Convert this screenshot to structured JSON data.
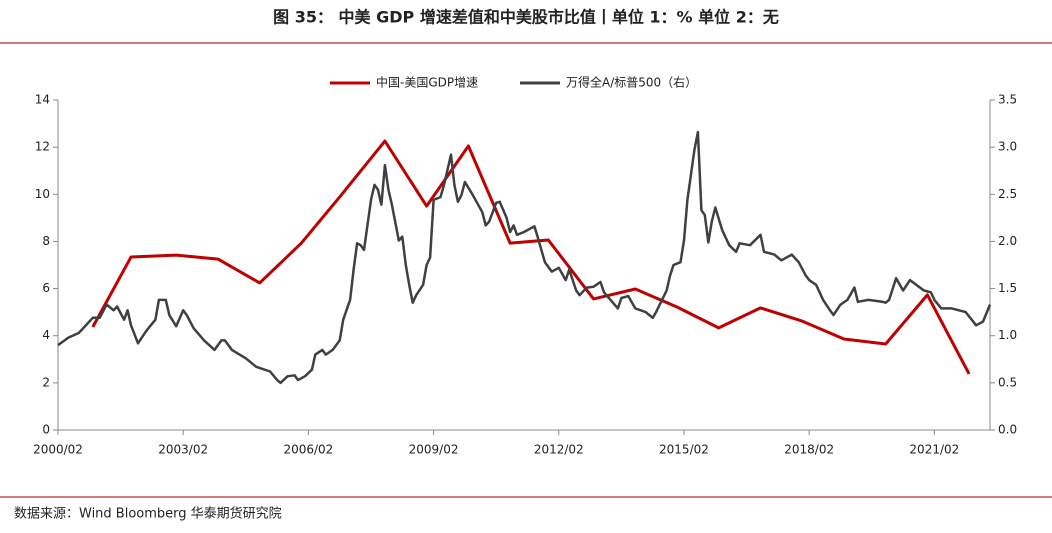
{
  "chart_data": {
    "type": "line",
    "title": "图 35： 中美 GDP 增速差值和中美股市比值丨单位 1：% 单位 2：无",
    "source": "数据来源：Wind Bloomberg  华泰期货研究院",
    "xlim": [
      "2000/02",
      "2022/06"
    ],
    "xticks": [
      "2000/02",
      "2003/02",
      "2006/02",
      "2009/02",
      "2012/02",
      "2015/02",
      "2018/02",
      "2021/02"
    ],
    "ylim": [
      0,
      14
    ],
    "yticks": [
      0,
      2,
      4,
      6,
      8,
      10,
      12,
      14
    ],
    "y2lim": [
      0,
      3.5
    ],
    "y2ticks": [
      {
        "value": 0,
        "label": "0.0"
      },
      {
        "value": 0.5,
        "label": "0.5"
      },
      {
        "value": 1,
        "label": "1.0"
      },
      {
        "value": 1.5,
        "label": "1.5"
      },
      {
        "value": 2,
        "label": "2.0"
      },
      {
        "value": 2.5,
        "label": "2.5"
      },
      {
        "value": 3,
        "label": "3.0"
      },
      {
        "value": 3.5,
        "label": "3.5"
      }
    ],
    "legend": "top",
    "series": [
      {
        "name": "中国-美国GDP增速",
        "color": "#c00000",
        "x": [
          "2000/12",
          "2001/11",
          "2002/12",
          "2003/12",
          "2004/12",
          "2005/12",
          "2006/11",
          "2007/12",
          "2008/12",
          "2009/12",
          "2010/12",
          "2011/11",
          "2012/12",
          "2013/12",
          "2014/12",
          "2015/12",
          "2016/12",
          "2017/12",
          "2018/12",
          "2019/12",
          "2020/12",
          "2021/12"
        ],
        "values": [
          4.37,
          7.34,
          7.42,
          7.25,
          6.24,
          7.93,
          9.89,
          12.26,
          9.5,
          12.05,
          7.93,
          8.06,
          5.56,
          5.98,
          5.22,
          4.33,
          5.18,
          4.62,
          3.86,
          3.65,
          5.73,
          2.38
        ]
      },
      {
        "name": "万得全A/标普500（右）",
        "color": "#404040",
        "axis": "y2",
        "x": [
          "2000/02",
          "2000/05",
          "2000/08",
          "2000/12",
          "2001/02",
          "2001/04",
          "2001/06",
          "2001/07",
          "2001/09",
          "2001/10",
          "2001/11",
          "2002/01",
          "2002/03",
          "2002/04",
          "2002/06",
          "2002/07",
          "2002/09",
          "2002/10",
          "2002/12",
          "2003/02",
          "2003/03",
          "2003/05",
          "2003/08",
          "2003/11",
          "2004/01",
          "2004/02",
          "2004/04",
          "2004/08",
          "2004/11",
          "2005/03",
          "2005/05",
          "2005/06",
          "2005/08",
          "2005/10",
          "2005/11",
          "2006/01",
          "2006/03",
          "2006/04",
          "2006/06",
          "2006/07",
          "2006/09",
          "2006/11",
          "2006/12",
          "2007/02",
          "2007/03",
          "2007/04",
          "2007/05",
          "2007/06",
          "2007/08",
          "2007/09",
          "2007/10",
          "2007/11",
          "2007/12",
          "2008/01",
          "2008/02",
          "2008/04",
          "2008/05",
          "2008/06",
          "2008/07",
          "2008/08",
          "2008/09",
          "2008/11",
          "2008/12",
          "2009/01",
          "2009/02",
          "2009/04",
          "2009/05",
          "2009/07",
          "2009/08",
          "2009/09",
          "2009/10",
          "2009/11",
          "2010/01",
          "2010/04",
          "2010/05",
          "2010/06",
          "2010/08",
          "2010/09",
          "2010/11",
          "2010/12",
          "2011/01",
          "2011/02",
          "2011/04",
          "2011/07",
          "2011/08",
          "2011/10",
          "2011/12",
          "2012/02",
          "2012/04",
          "2012/05",
          "2012/07",
          "2012/08",
          "2012/10",
          "2012/12",
          "2013/02",
          "2013/03",
          "2013/07",
          "2013/08",
          "2013/10",
          "2013/12",
          "2014/03",
          "2014/05",
          "2014/06",
          "2014/09",
          "2014/10",
          "2014/11",
          "2015/01",
          "2015/02",
          "2015/03",
          "2015/05",
          "2015/06",
          "2015/07",
          "2015/08",
          "2015/09",
          "2015/10",
          "2015/11",
          "2016/01",
          "2016/03",
          "2016/05",
          "2016/06",
          "2016/09",
          "2016/12",
          "2017/01",
          "2017/04",
          "2017/06",
          "2017/09",
          "2017/11",
          "2018/01",
          "2018/02",
          "2018/04",
          "2018/06",
          "2018/08",
          "2018/09",
          "2018/11",
          "2019/01",
          "2019/03",
          "2019/04",
          "2019/07",
          "2019/11",
          "2019/12",
          "2020/01",
          "2020/03",
          "2020/05",
          "2020/07",
          "2020/11",
          "2021/01",
          "2021/02",
          "2021/04",
          "2021/07",
          "2021/11",
          "2022/02",
          "2022/04",
          "2022/06"
        ],
        "values": [
          0.9,
          0.98,
          1.03,
          1.19,
          1.19,
          1.33,
          1.27,
          1.31,
          1.17,
          1.27,
          1.11,
          0.92,
          1.03,
          1.08,
          1.17,
          1.38,
          1.38,
          1.22,
          1.1,
          1.27,
          1.22,
          1.08,
          0.95,
          0.85,
          0.95,
          0.95,
          0.85,
          0.76,
          0.67,
          0.62,
          0.53,
          0.5,
          0.57,
          0.58,
          0.53,
          0.57,
          0.64,
          0.8,
          0.85,
          0.8,
          0.85,
          0.95,
          1.17,
          1.38,
          1.7,
          1.98,
          1.96,
          1.91,
          2.44,
          2.6,
          2.55,
          2.39,
          2.81,
          2.55,
          2.39,
          2.01,
          2.05,
          1.75,
          1.54,
          1.35,
          1.43,
          1.54,
          1.75,
          1.83,
          2.44,
          2.47,
          2.6,
          2.92,
          2.6,
          2.42,
          2.49,
          2.63,
          2.51,
          2.31,
          2.17,
          2.21,
          2.41,
          2.42,
          2.25,
          2.1,
          2.17,
          2.07,
          2.1,
          2.16,
          2.04,
          1.78,
          1.68,
          1.72,
          1.59,
          1.7,
          1.48,
          1.43,
          1.51,
          1.52,
          1.57,
          1.46,
          1.29,
          1.4,
          1.42,
          1.29,
          1.25,
          1.19,
          1.25,
          1.48,
          1.64,
          1.75,
          1.78,
          2.01,
          2.44,
          2.97,
          3.16,
          2.33,
          2.28,
          1.99,
          2.21,
          2.36,
          2.12,
          1.96,
          1.89,
          1.98,
          1.96,
          2.07,
          1.89,
          1.86,
          1.8,
          1.86,
          1.78,
          1.64,
          1.59,
          1.54,
          1.38,
          1.27,
          1.22,
          1.33,
          1.38,
          1.51,
          1.36,
          1.38,
          1.36,
          1.35,
          1.38,
          1.61,
          1.48,
          1.59,
          1.48,
          1.46,
          1.38,
          1.29,
          1.29,
          1.25,
          1.11,
          1.15,
          1.33
        ]
      }
    ]
  }
}
